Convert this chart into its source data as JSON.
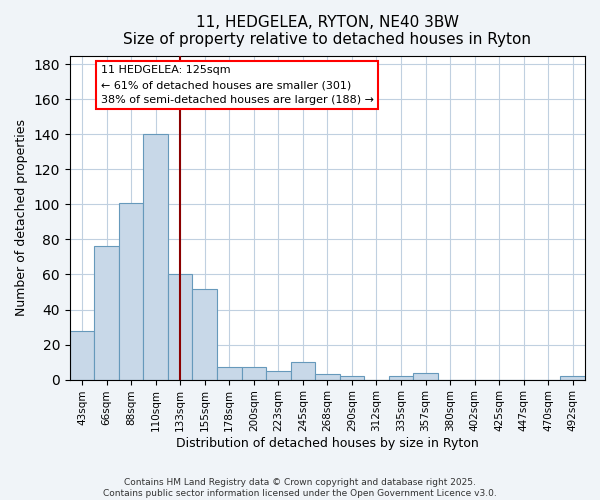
{
  "title": "11, HEDGELEA, RYTON, NE40 3BW",
  "subtitle": "Size of property relative to detached houses in Ryton",
  "xlabel": "Distribution of detached houses by size in Ryton",
  "ylabel": "Number of detached properties",
  "bar_labels": [
    "43sqm",
    "66sqm",
    "88sqm",
    "110sqm",
    "133sqm",
    "155sqm",
    "178sqm",
    "200sqm",
    "223sqm",
    "245sqm",
    "268sqm",
    "290sqm",
    "312sqm",
    "335sqm",
    "357sqm",
    "380sqm",
    "402sqm",
    "425sqm",
    "447sqm",
    "470sqm",
    "492sqm"
  ],
  "bar_values": [
    28,
    76,
    101,
    140,
    60,
    52,
    7,
    7,
    5,
    10,
    3,
    2,
    0,
    2,
    4,
    0,
    0,
    0,
    0,
    0,
    2
  ],
  "bar_color": "#c8d8e8",
  "bar_edge_color": "#6699bb",
  "vline_x_idx": 4,
  "vline_color": "#8b0000",
  "ylim": [
    0,
    185
  ],
  "yticks": [
    0,
    20,
    40,
    60,
    80,
    100,
    120,
    140,
    160,
    180
  ],
  "annotation_title": "11 HEDGELEA: 125sqm",
  "annotation_line1": "← 61% of detached houses are smaller (301)",
  "annotation_line2": "38% of semi-detached houses are larger (188) →",
  "footer1": "Contains HM Land Registry data © Crown copyright and database right 2025.",
  "footer2": "Contains public sector information licensed under the Open Government Licence v3.0.",
  "bg_color": "#f0f4f8",
  "plot_bg_color": "#ffffff",
  "grid_color": "#c0d0e0"
}
